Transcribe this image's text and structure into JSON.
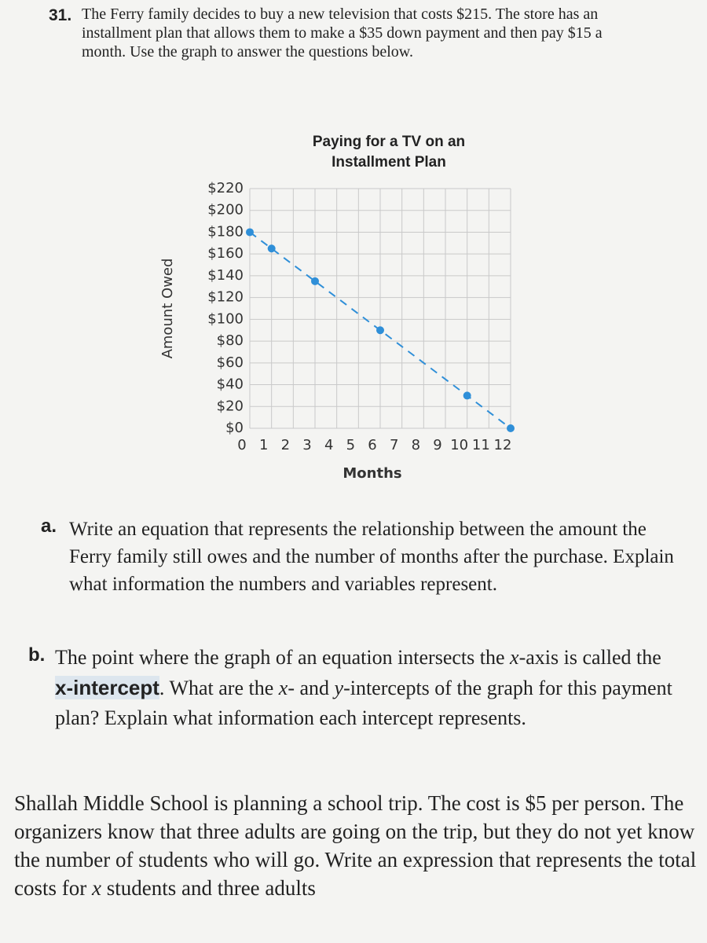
{
  "problem": {
    "number": "31.",
    "text": "The Ferry family decides to buy a new television that costs $215. The store has an installment plan that allows them to make a $35 down payment and then pay $15 a month. Use the graph to answer the questions below."
  },
  "chart_data": {
    "type": "line",
    "title": "Paying for a TV on an Installment Plan",
    "x_label": "Months",
    "y_label": "Amount Owed",
    "x": [
      0,
      1,
      3,
      6,
      10,
      12
    ],
    "series": [
      {
        "color": "#2f8fd8",
        "values": [
          180,
          165,
          135,
          90,
          30,
          0
        ]
      }
    ],
    "xlim": [
      0,
      12
    ],
    "xticks": [
      0,
      1,
      2,
      3,
      4,
      5,
      6,
      7,
      8,
      9,
      10,
      11,
      12
    ],
    "ylim": [
      0,
      220
    ],
    "yticks": [
      {
        "value": 0,
        "label": "$0"
      },
      {
        "value": 20,
        "label": "$20"
      },
      {
        "value": 40,
        "label": "$40"
      },
      {
        "value": 60,
        "label": "$60"
      },
      {
        "value": 80,
        "label": "$80"
      },
      {
        "value": 100,
        "label": "$100"
      },
      {
        "value": 120,
        "label": "$120"
      },
      {
        "value": 140,
        "label": "$140"
      },
      {
        "value": 160,
        "label": "$160"
      },
      {
        "value": 180,
        "label": "$180"
      },
      {
        "value": 200,
        "label": "$200"
      },
      {
        "value": 220,
        "label": "$220"
      }
    ],
    "grid": true,
    "line_style": "dashed"
  },
  "part_a": {
    "label": "a.",
    "text": "Write an equation that represents the relationship between the amount the Ferry family still owes and the number of months after the purchase. Explain what information the numbers and variables represent."
  },
  "part_b": {
    "label": "b.",
    "segments": [
      "The point where the graph of an equation intersects the ",
      "x",
      "-axis is called the ",
      "x-intercept",
      ". What are the ",
      "x",
      "- and ",
      "y",
      "-intercepts of the graph for this payment plan? Explain what information each intercept represents."
    ]
  },
  "next_problem": {
    "segments": [
      "Shallah Middle School is planning a school trip. The cost is $5 per person. The organizers know that three adults are going on the trip, but they do not yet know the number of students who will go. Write an expression that represents the total costs for ",
      "x",
      " students and three adults"
    ]
  }
}
